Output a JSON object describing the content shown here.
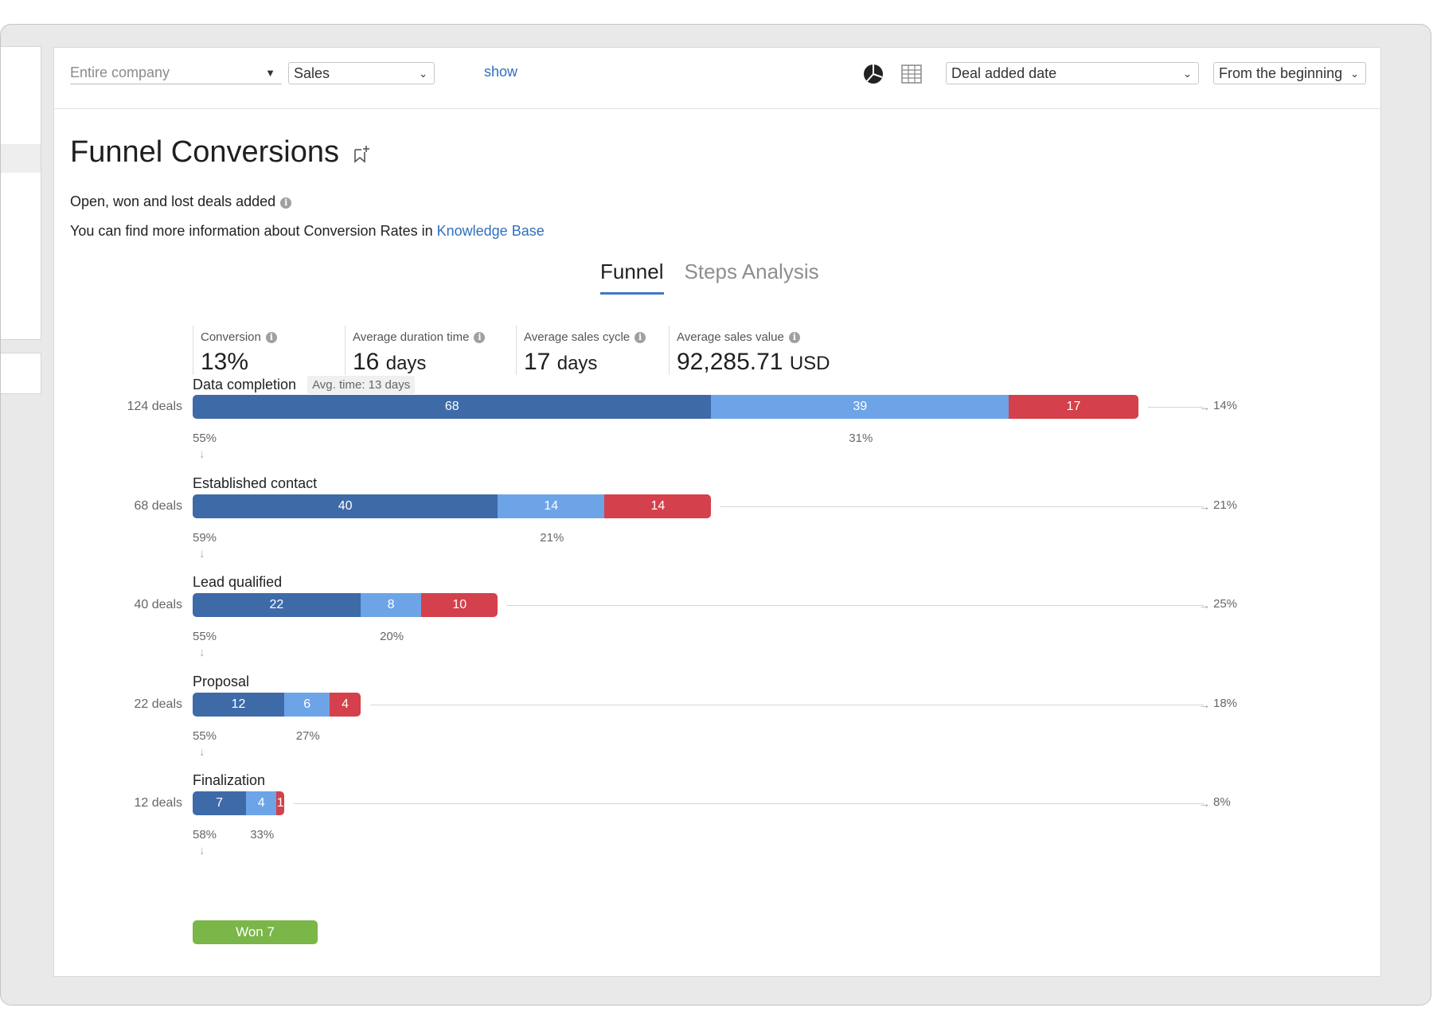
{
  "filters": {
    "scope": "Entire company",
    "pipeline": "Sales",
    "show_link": "show",
    "date_field": "Deal added date",
    "period": "From the beginning"
  },
  "icons": {
    "pie": "pie-chart-icon",
    "table": "table-view-icon",
    "bookmark": "bookmark-add-icon",
    "info": "info-icon"
  },
  "report": {
    "title": "Funnel Conversions",
    "subtitle": "Open, won and lost deals added",
    "kb_text": "You can find more information about Conversion Rates in",
    "kb_link": "Knowledge Base"
  },
  "tabs": [
    {
      "label": "Funnel",
      "active": true
    },
    {
      "label": "Steps Analysis",
      "active": false
    }
  ],
  "stats": [
    {
      "label": "Conversion",
      "value": "13%",
      "unit": ""
    },
    {
      "label": "Average duration time",
      "value": "16",
      "unit": "days"
    },
    {
      "label": "Average sales cycle",
      "value": "17",
      "unit": "days"
    },
    {
      "label": "Average sales value",
      "value": "92,285.71",
      "unit": "USD"
    }
  ],
  "colors": {
    "open": "#3e6aa8",
    "won": "#6da4e8",
    "lost": "#d4404b",
    "won_pill": "#7ab648",
    "accent": "#3f78c9"
  },
  "chart_data": {
    "type": "bar",
    "orientation": "horizontal-stacked",
    "series_order": [
      "open",
      "won",
      "lost"
    ],
    "stages": [
      {
        "name": "Data completion",
        "avg_time": "Avg. time: 13 days",
        "deals_label": "124 deals",
        "total": 124,
        "open": 68,
        "won": 39,
        "lost": 17,
        "open_pct": "55%",
        "won_pct": "31%",
        "lost_pct": "14%"
      },
      {
        "name": "Established contact",
        "avg_time": "",
        "deals_label": "68 deals",
        "total": 68,
        "open": 40,
        "won": 14,
        "lost": 14,
        "open_pct": "59%",
        "won_pct": "21%",
        "lost_pct": "21%"
      },
      {
        "name": "Lead qualified",
        "avg_time": "",
        "deals_label": "40 deals",
        "total": 40,
        "open": 22,
        "won": 8,
        "lost": 10,
        "open_pct": "55%",
        "won_pct": "20%",
        "lost_pct": "25%"
      },
      {
        "name": "Proposal",
        "avg_time": "",
        "deals_label": "22 deals",
        "total": 22,
        "open": 12,
        "won": 6,
        "lost": 4,
        "open_pct": "55%",
        "won_pct": "27%",
        "lost_pct": "18%"
      },
      {
        "name": "Finalization",
        "avg_time": "",
        "deals_label": "12 deals",
        "total": 12,
        "open": 7,
        "won": 4,
        "lost": 1,
        "open_pct": "58%",
        "won_pct": "33%",
        "lost_pct": "8%"
      }
    ],
    "won_label": "Won 7",
    "won_value": 7
  }
}
